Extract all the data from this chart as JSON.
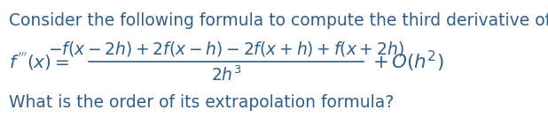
{
  "background_color": "#ffffff",
  "text_color": "#2E5F8A",
  "title_text": "Consider the following formula to compute the third derivative of f:",
  "title_fontsize": 13.5,
  "question_text": "What is the order of its extrapolation formula?",
  "question_fontsize": 13.5,
  "formula_fontsize": 13.5
}
